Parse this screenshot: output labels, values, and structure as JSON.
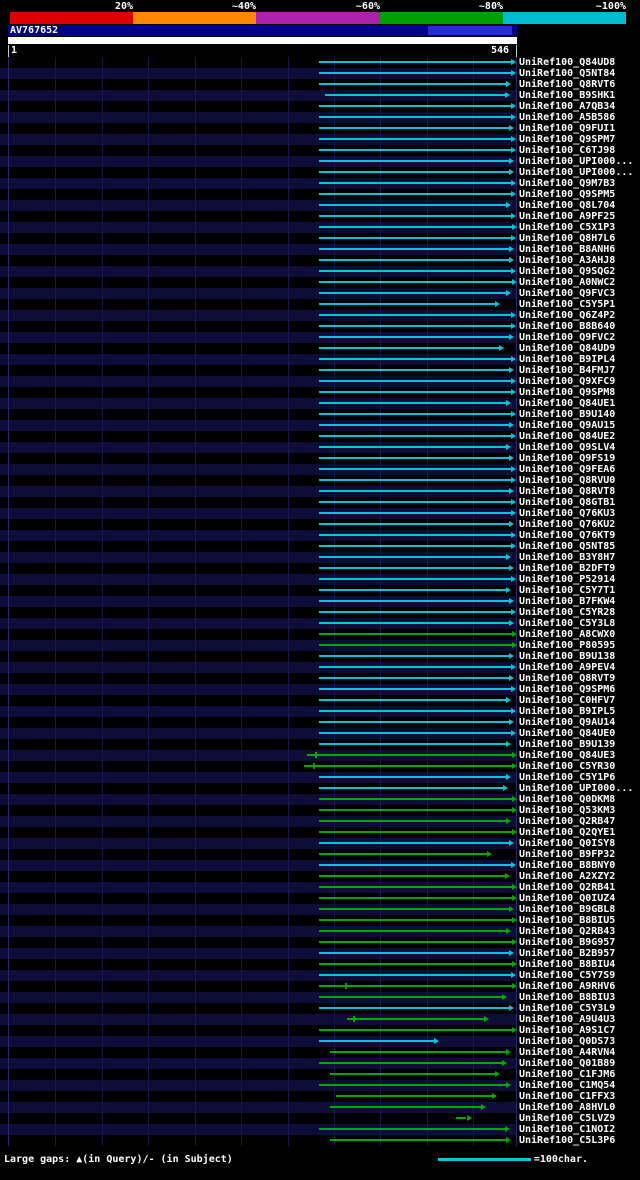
{
  "scalebar": {
    "labels": [
      "20%",
      "~40%",
      "~60%",
      "~80%",
      "~100%"
    ],
    "colors": [
      "#dd0000",
      "#ff8800",
      "#aa22aa",
      "#00a000",
      "#00bcd0"
    ]
  },
  "query": {
    "name": "AV767652",
    "start_label": "1",
    "end_label": "546",
    "length": 546,
    "header_bg": "#00008b",
    "highlight": {
      "qstart": 451,
      "qend": 542,
      "color": "#2a2ad6"
    }
  },
  "legend": {
    "gaps_text": "Large gaps: ▲(in Query)/- (in Subject)",
    "scale_text": "=100char."
  },
  "chart_data": {
    "type": "bar",
    "orientation": "horizontal-span",
    "title": "AV767652",
    "x_range": [
      1,
      546
    ],
    "colors": {
      "cyan": "#00c6d7",
      "green": "#00a800"
    },
    "hits": [
      {
        "label": "UniRef100_Q84UD8",
        "s": 334,
        "e": 545,
        "c": "cyan"
      },
      {
        "label": "UniRef100_Q5NT84",
        "s": 334,
        "e": 545,
        "c": "cyan"
      },
      {
        "label": "UniRef100_Q8RVT6",
        "s": 334,
        "e": 540,
        "c": "cyan"
      },
      {
        "label": "UniRef100_B9SHK1",
        "s": 340,
        "e": 538,
        "c": "cyan"
      },
      {
        "label": "UniRef100_A7QB34",
        "s": 334,
        "e": 545,
        "c": "cyan"
      },
      {
        "label": "UniRef100_A5B586",
        "s": 334,
        "e": 545,
        "c": "cyan"
      },
      {
        "label": "UniRef100_Q9FUI1",
        "s": 334,
        "e": 543,
        "c": "cyan"
      },
      {
        "label": "UniRef100_Q9SPM7",
        "s": 334,
        "e": 545,
        "c": "cyan"
      },
      {
        "label": "UniRef100_C6TJ98",
        "s": 334,
        "e": 545,
        "c": "cyan"
      },
      {
        "label": "UniRef100_UPI000...",
        "s": 334,
        "e": 543,
        "c": "cyan"
      },
      {
        "label": "UniRef100_UPI000...",
        "s": 334,
        "e": 543,
        "c": "cyan"
      },
      {
        "label": "UniRef100_Q9M7B3",
        "s": 334,
        "e": 545,
        "c": "cyan"
      },
      {
        "label": "UniRef100_Q9SPM5",
        "s": 334,
        "e": 545,
        "c": "cyan"
      },
      {
        "label": "UniRef100_Q8L704",
        "s": 334,
        "e": 540,
        "c": "cyan"
      },
      {
        "label": "UniRef100_A9PF25",
        "s": 334,
        "e": 545,
        "c": "cyan"
      },
      {
        "label": "UniRef100_C5X1P3",
        "s": 334,
        "e": 546,
        "c": "cyan"
      },
      {
        "label": "UniRef100_Q8H7L6",
        "s": 334,
        "e": 545,
        "c": "cyan"
      },
      {
        "label": "UniRef100_B8ANH6",
        "s": 334,
        "e": 543,
        "c": "cyan"
      },
      {
        "label": "UniRef100_A3AHJ8",
        "s": 334,
        "e": 543,
        "c": "cyan"
      },
      {
        "label": "UniRef100_Q9SQG2",
        "s": 334,
        "e": 545,
        "c": "cyan"
      },
      {
        "label": "UniRef100_A0NWC2",
        "s": 334,
        "e": 546,
        "c": "cyan"
      },
      {
        "label": "UniRef100_Q9FVC3",
        "s": 334,
        "e": 540,
        "c": "cyan"
      },
      {
        "label": "UniRef100_C5Y5P1",
        "s": 334,
        "e": 528,
        "c": "cyan"
      },
      {
        "label": "UniRef100_Q6Z4P2",
        "s": 334,
        "e": 545,
        "c": "cyan"
      },
      {
        "label": "UniRef100_B8B640",
        "s": 334,
        "e": 545,
        "c": "cyan"
      },
      {
        "label": "UniRef100_Q9FVC2",
        "s": 334,
        "e": 543,
        "c": "cyan"
      },
      {
        "label": "UniRef100_Q84UD9",
        "s": 334,
        "e": 532,
        "c": "cyan"
      },
      {
        "label": "UniRef100_B9IPL4",
        "s": 334,
        "e": 545,
        "c": "cyan"
      },
      {
        "label": "UniRef100_B4FMJ7",
        "s": 334,
        "e": 543,
        "c": "cyan"
      },
      {
        "label": "UniRef100_Q9XFC9",
        "s": 334,
        "e": 545,
        "c": "cyan"
      },
      {
        "label": "UniRef100_Q9SPM8",
        "s": 334,
        "e": 545,
        "c": "cyan"
      },
      {
        "label": "UniRef100_Q84UE1",
        "s": 334,
        "e": 540,
        "c": "cyan"
      },
      {
        "label": "UniRef100_B9U140",
        "s": 334,
        "e": 545,
        "c": "cyan"
      },
      {
        "label": "UniRef100_Q9AU15",
        "s": 334,
        "e": 543,
        "c": "cyan"
      },
      {
        "label": "UniRef100_Q84UE2",
        "s": 334,
        "e": 545,
        "c": "cyan"
      },
      {
        "label": "UniRef100_Q9SLV4",
        "s": 334,
        "e": 540,
        "c": "cyan"
      },
      {
        "label": "UniRef100_Q9FS19",
        "s": 334,
        "e": 543,
        "c": "cyan"
      },
      {
        "label": "UniRef100_Q9FEA6",
        "s": 334,
        "e": 545,
        "c": "cyan"
      },
      {
        "label": "UniRef100_Q8RVU0",
        "s": 334,
        "e": 545,
        "c": "cyan"
      },
      {
        "label": "UniRef100_Q8RVT8",
        "s": 334,
        "e": 543,
        "c": "cyan"
      },
      {
        "label": "UniRef100_Q8GTB1",
        "s": 334,
        "e": 545,
        "c": "cyan"
      },
      {
        "label": "UniRef100_Q76KU3",
        "s": 334,
        "e": 545,
        "c": "cyan"
      },
      {
        "label": "UniRef100_Q76KU2",
        "s": 334,
        "e": 543,
        "c": "cyan"
      },
      {
        "label": "UniRef100_Q76KT9",
        "s": 334,
        "e": 545,
        "c": "cyan"
      },
      {
        "label": "UniRef100_Q5NT85",
        "s": 334,
        "e": 545,
        "c": "cyan"
      },
      {
        "label": "UniRef100_B3Y8H7",
        "s": 334,
        "e": 540,
        "c": "cyan"
      },
      {
        "label": "UniRef100_B2DFT9",
        "s": 334,
        "e": 543,
        "c": "cyan"
      },
      {
        "label": "UniRef100_P52914",
        "s": 334,
        "e": 545,
        "c": "cyan"
      },
      {
        "label": "UniRef100_C5Y7T1",
        "s": 334,
        "e": 540,
        "c": "cyan"
      },
      {
        "label": "UniRef100_B7FKW4",
        "s": 334,
        "e": 543,
        "c": "cyan"
      },
      {
        "label": "UniRef100_C5YR28",
        "s": 334,
        "e": 545,
        "c": "cyan"
      },
      {
        "label": "UniRef100_C5Y3L8",
        "s": 334,
        "e": 543,
        "c": "cyan"
      },
      {
        "label": "UniRef100_A8CWX0",
        "s": 334,
        "e": 546,
        "c": "green"
      },
      {
        "label": "UniRef100_P80595",
        "s": 334,
        "e": 546,
        "c": "green"
      },
      {
        "label": "UniRef100_B9U138",
        "s": 334,
        "e": 543,
        "c": "cyan"
      },
      {
        "label": "UniRef100_A9PEV4",
        "s": 334,
        "e": 545,
        "c": "cyan"
      },
      {
        "label": "UniRef100_Q8RVT9",
        "s": 334,
        "e": 543,
        "c": "cyan"
      },
      {
        "label": "UniRef100_Q9SPM6",
        "s": 334,
        "e": 545,
        "c": "cyan"
      },
      {
        "label": "UniRef100_C0HFV7",
        "s": 334,
        "e": 540,
        "c": "cyan"
      },
      {
        "label": "UniRef100_B9IPL5",
        "s": 334,
        "e": 545,
        "c": "cyan"
      },
      {
        "label": "UniRef100_Q9AU14",
        "s": 334,
        "e": 543,
        "c": "cyan"
      },
      {
        "label": "UniRef100_Q84UE0",
        "s": 334,
        "e": 545,
        "c": "cyan"
      },
      {
        "label": "UniRef100_B9U139",
        "s": 334,
        "e": 540,
        "c": "cyan"
      },
      {
        "label": "UniRef100_Q84UE3",
        "s": 321,
        "e": 546,
        "c": "green",
        "t": [
          330
        ]
      },
      {
        "label": "UniRef100_C5YR30",
        "s": 318,
        "e": 546,
        "c": "green",
        "t": [
          327
        ]
      },
      {
        "label": "UniRef100_C5Y1P6",
        "s": 334,
        "e": 540,
        "c": "cyan"
      },
      {
        "label": "UniRef100_UPI000...",
        "s": 334,
        "e": 536,
        "c": "cyan"
      },
      {
        "label": "UniRef100_Q0DKM8",
        "s": 334,
        "e": 546,
        "c": "green"
      },
      {
        "label": "UniRef100_Q53KM3",
        "s": 334,
        "e": 546,
        "c": "green"
      },
      {
        "label": "UniRef100_Q2RB47",
        "s": 334,
        "e": 540,
        "c": "green"
      },
      {
        "label": "UniRef100_Q2QYE1",
        "s": 334,
        "e": 546,
        "c": "green"
      },
      {
        "label": "UniRef100_Q0ISY8",
        "s": 334,
        "e": 543,
        "c": "cyan"
      },
      {
        "label": "UniRef100_B9FP32",
        "s": 334,
        "e": 519,
        "c": "green"
      },
      {
        "label": "UniRef100_B8BNY0",
        "s": 334,
        "e": 545,
        "c": "cyan"
      },
      {
        "label": "UniRef100_A2XZY2",
        "s": 334,
        "e": 538,
        "c": "green"
      },
      {
        "label": "UniRef100_Q2RB41",
        "s": 334,
        "e": 546,
        "c": "green"
      },
      {
        "label": "UniRef100_Q0IUZ4",
        "s": 334,
        "e": 546,
        "c": "green"
      },
      {
        "label": "UniRef100_B9GBL8",
        "s": 334,
        "e": 543,
        "c": "green"
      },
      {
        "label": "UniRef100_B8BIU5",
        "s": 334,
        "e": 546,
        "c": "green"
      },
      {
        "label": "UniRef100_Q2RB43",
        "s": 334,
        "e": 540,
        "c": "green"
      },
      {
        "label": "UniRef100_B9G957",
        "s": 334,
        "e": 546,
        "c": "green"
      },
      {
        "label": "UniRef100_B2B957",
        "s": 334,
        "e": 543,
        "c": "cyan"
      },
      {
        "label": "UniRef100_B8BIU4",
        "s": 334,
        "e": 546,
        "c": "green"
      },
      {
        "label": "UniRef100_C5Y7S9",
        "s": 334,
        "e": 545,
        "c": "cyan"
      },
      {
        "label": "UniRef100_A9RHV6",
        "s": 334,
        "e": 546,
        "c": "green",
        "t": [
          362
        ]
      },
      {
        "label": "UniRef100_B8BIU3",
        "s": 334,
        "e": 535,
        "c": "green"
      },
      {
        "label": "UniRef100_C5Y3L9",
        "s": 334,
        "e": 543,
        "c": "cyan"
      },
      {
        "label": "UniRef100_A9U4U3",
        "s": 364,
        "e": 516,
        "c": "green",
        "t": [
          370
        ]
      },
      {
        "label": "UniRef100_A9S1C7",
        "s": 334,
        "e": 546,
        "c": "green"
      },
      {
        "label": "UniRef100_Q0DS73",
        "s": 334,
        "e": 462,
        "c": "cyan"
      },
      {
        "label": "UniRef100_A4RVN4",
        "s": 346,
        "e": 540,
        "c": "green"
      },
      {
        "label": "UniRef100_Q01B89",
        "s": 334,
        "e": 535,
        "c": "green"
      },
      {
        "label": "UniRef100_C1FJM6",
        "s": 346,
        "e": 528,
        "c": "green"
      },
      {
        "label": "UniRef100_C1MQ54",
        "s": 334,
        "e": 540,
        "c": "green"
      },
      {
        "label": "UniRef100_C1FFX3",
        "s": 352,
        "e": 524,
        "c": "green"
      },
      {
        "label": "UniRef100_A8HVL0",
        "s": 346,
        "e": 513,
        "c": "green"
      },
      {
        "label": "UniRef100_C5LVZ9",
        "s": 481,
        "e": 497,
        "c": "green"
      },
      {
        "label": "UniRef100_C1NOI2",
        "s": 334,
        "e": 538,
        "c": "green"
      },
      {
        "label": "UniRef100_C5L3P6",
        "s": 346,
        "e": 540,
        "c": "green"
      }
    ]
  }
}
